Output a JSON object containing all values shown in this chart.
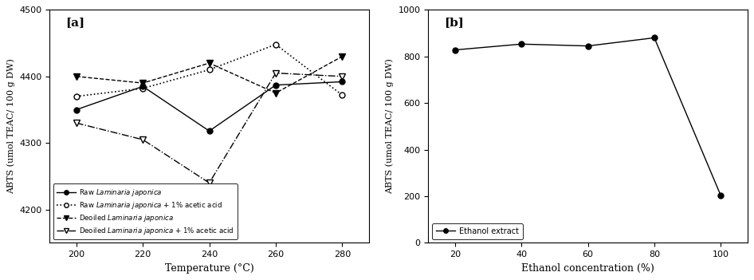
{
  "panel_a": {
    "x": [
      200,
      220,
      240,
      260,
      280
    ],
    "raw_y": [
      4350,
      4385,
      4318,
      4387,
      4392
    ],
    "raw_acid_y": [
      4370,
      4382,
      4410,
      4448,
      4372
    ],
    "deoiled_y": [
      4400,
      4390,
      4420,
      4375,
      4430
    ],
    "deoiled_acid_y": [
      4330,
      4305,
      4240,
      4405,
      4400
    ],
    "ylim": [
      4150,
      4500
    ],
    "yticks": [
      4200,
      4300,
      4400,
      4500
    ],
    "xlabel": "Temperature (°C)",
    "ylabel": "ABTS (umol TEAC/ 100 g DW)",
    "panel_label": "[a]"
  },
  "panel_b": {
    "x": [
      20,
      40,
      60,
      80,
      100
    ],
    "y": [
      828,
      853,
      845,
      880,
      203
    ],
    "ylim": [
      0,
      1000
    ],
    "yticks": [
      0,
      200,
      400,
      600,
      800,
      1000
    ],
    "xlabel": "Ethanol concentration (%)",
    "ylabel": "ABTS (umol TEAC/ 100 g DW)",
    "label": "Ethanol extract",
    "panel_label": "[b]"
  },
  "figsize": [
    9.46,
    3.51
  ],
  "dpi": 100
}
